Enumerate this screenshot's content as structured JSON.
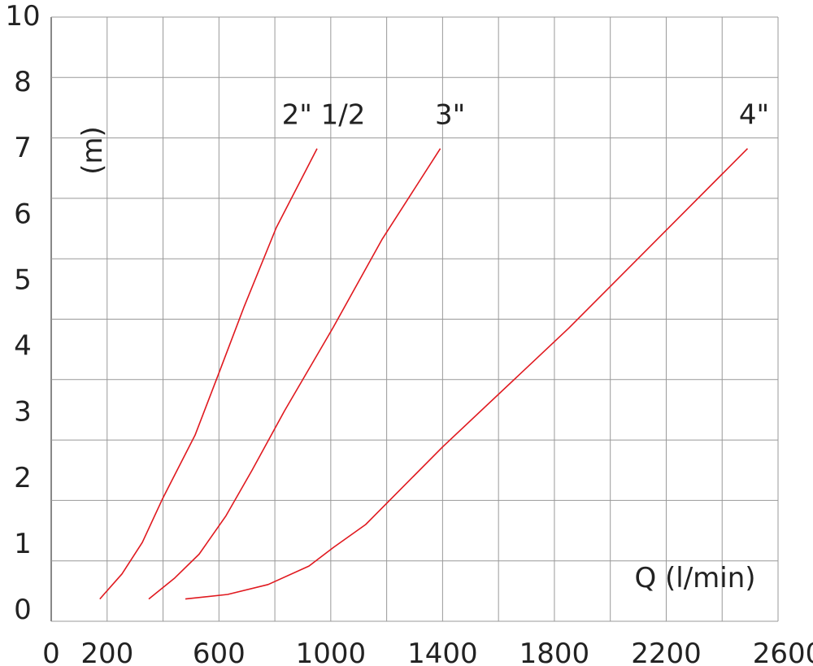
{
  "chart_data": {
    "type": "line",
    "xlabel": "Q (l/min)",
    "ylabel": "(m)",
    "x_ticks": [
      0,
      200,
      600,
      1000,
      1400,
      1800,
      2200,
      2600
    ],
    "x_tick_labels": [
      "0",
      "200",
      "600",
      "1000",
      "1400",
      "1800",
      "2200",
      "2600"
    ],
    "y_ticks": [
      0,
      1,
      2,
      3,
      4,
      5,
      6,
      7,
      8,
      10
    ],
    "y_tick_labels": [
      "0",
      "1",
      "2",
      "3",
      "4",
      "5",
      "6",
      "7",
      "8",
      "10"
    ],
    "xlim": [
      0,
      2600
    ],
    "grid": true,
    "line_color": "#e0191f",
    "series": [
      {
        "name": "2\" 1/2",
        "x": [
          174,
          253,
          326,
          398,
          515,
          602,
          689,
          805,
          951
        ],
        "y": [
          0.14,
          0.52,
          1.0,
          1.66,
          2.63,
          3.59,
          4.56,
          5.77,
          6.97
        ]
      },
      {
        "name": "3\"",
        "x": [
          349,
          442,
          529,
          625,
          718,
          834,
          1009,
          1183,
          1392
        ],
        "y": [
          0.14,
          0.46,
          0.82,
          1.4,
          2.09,
          2.99,
          4.26,
          5.59,
          6.97
        ]
      },
      {
        "name": "4\"",
        "x": [
          480,
          631,
          776,
          922,
          1009,
          1125,
          1401,
          1852,
          2491
        ],
        "y": [
          0.14,
          0.21,
          0.36,
          0.64,
          0.92,
          1.27,
          2.45,
          4.25,
          6.97
        ]
      }
    ]
  }
}
